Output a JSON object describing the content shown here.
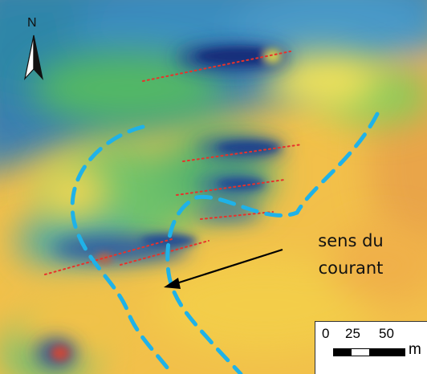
{
  "map": {
    "north_label": "N",
    "annotation": {
      "line1": "sens du",
      "line2": "courant"
    },
    "scale_bar": {
      "ticks": [
        "0",
        "25",
        "50"
      ],
      "unit": "m"
    },
    "colors": {
      "crest_line": "#e8322a",
      "current_boundary": "#1fb2e8",
      "arrow": "#000000",
      "terrain_low": "#1b3f8f",
      "terrain_mid": "#4fb86a",
      "terrain_high": "#f0d44a"
    },
    "icons": [
      "north-arrow-icon",
      "current-direction-arrow-icon"
    ]
  }
}
